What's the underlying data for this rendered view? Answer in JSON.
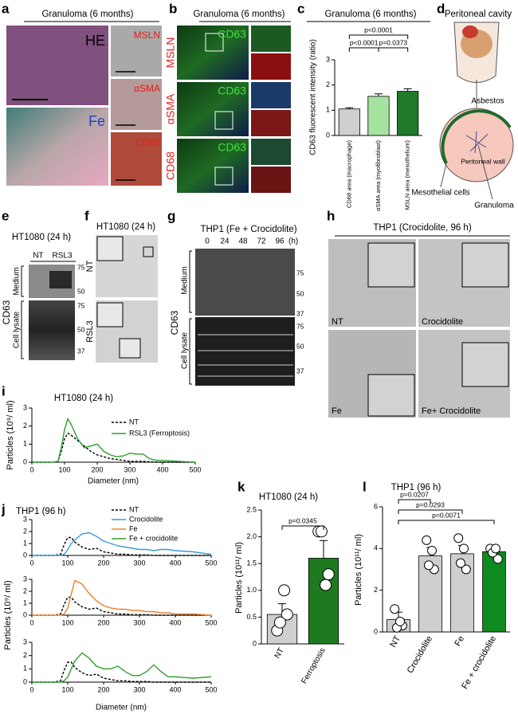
{
  "panels": {
    "a": {
      "letter": "a",
      "title": "Granuloma (6 months)",
      "stains": [
        "HE",
        "Fe",
        "MSLN",
        "αSMA",
        "CD68"
      ]
    },
    "b": {
      "letter": "b",
      "title": "Granuloma (6 months)",
      "marker": "CD63",
      "rows": [
        "MSLN",
        "αSMA",
        "CD68"
      ]
    },
    "d": {
      "letter": "d",
      "title": "Peritoneal cavity",
      "labels": [
        "Asbestos",
        "Peritoneal wall",
        "Mesothelial cells",
        "Granuloma"
      ]
    },
    "e": {
      "letter": "e",
      "title": "HT1080 (24 h)",
      "lanes": [
        "NT",
        "RSL3"
      ],
      "protein": "CD63",
      "fractions": [
        "Medium",
        "Cell lysate"
      ],
      "size_markers": [
        "75",
        "50",
        "75",
        "50",
        "37"
      ]
    },
    "f": {
      "letter": "f",
      "title": "HT1080 (24 h)",
      "rows": [
        "NT",
        "RSL3"
      ]
    },
    "g": {
      "letter": "g",
      "title": "THP1 (Fe + Crocidolite)",
      "lanes": [
        "0",
        "24",
        "48",
        "72",
        "96"
      ],
      "lane_unit": "(h)",
      "protein": "CD63",
      "fractions": [
        "Medium",
        "Cell lysate"
      ],
      "size_markers": [
        "75",
        "50",
        "37",
        "75",
        "50",
        "37"
      ]
    },
    "h": {
      "letter": "h",
      "title": "THP1 (Crocidolite, 96 h)",
      "labels": [
        "NT",
        "Crocidolite",
        "Fe",
        "Fe+ Crocidolite"
      ]
    }
  },
  "chart_data": [
    {
      "type": "bar",
      "panel_label": "c",
      "title": "Granuloma (6 months)",
      "ylabel": "CD63 fluorescent intensity (ratio)",
      "categories": [
        "CD68 area (macrophage)",
        "αSMA area (myofibroblast)",
        "MSLN area (mesothelium)"
      ],
      "values": [
        1.05,
        1.55,
        1.75
      ],
      "errors": [
        0.05,
        0.1,
        0.1
      ],
      "colors": [
        "#cfcfcf",
        "#a6e3a0",
        "#1f7a2b"
      ],
      "ylim": [
        0,
        3
      ],
      "yticks": [
        0,
        1,
        2,
        3
      ],
      "annotations": [
        "p<0.0001",
        "p<0.0001",
        "p=0.0373"
      ]
    },
    {
      "type": "line",
      "panel_label": "i",
      "title": "HT1080 (24 h)",
      "xlabel": "Diameter (nm)",
      "ylabel": "Particles (10⁹/ ml)",
      "x": [
        0,
        20,
        40,
        60,
        80,
        90,
        100,
        110,
        120,
        140,
        160,
        180,
        200,
        220,
        240,
        260,
        280,
        300,
        320,
        340,
        360,
        380,
        400,
        450,
        500
      ],
      "series": [
        {
          "name": "NT",
          "color": "#000000",
          "linestyle": "dashed",
          "values": [
            0,
            0,
            0,
            0,
            0.05,
            0.6,
            1.3,
            1.6,
            1.5,
            1.2,
            0.9,
            0.6,
            0.4,
            0.3,
            0.2,
            0.15,
            0.1,
            0.05,
            0.05,
            0.05,
            0.02,
            0,
            0,
            0,
            0
          ]
        },
        {
          "name": "RSL3 (Ferroptosis)",
          "color": "#2ca02c",
          "linestyle": "solid",
          "values": [
            0,
            0,
            0,
            0,
            0.05,
            0.8,
            1.8,
            2.4,
            2.1,
            1.3,
            0.8,
            0.9,
            1.0,
            0.6,
            0.4,
            0.3,
            0.35,
            0.5,
            0.45,
            0.45,
            0.2,
            0.1,
            0.1,
            0.05,
            0
          ]
        }
      ],
      "xlim": [
        0,
        500
      ],
      "xticks": [
        0,
        100,
        200,
        300,
        400,
        500
      ],
      "ylim": [
        0,
        3
      ],
      "yticks": [
        0,
        1,
        2,
        3
      ]
    },
    {
      "type": "line",
      "panel_label": "j",
      "title": "THP1 (96 h)",
      "xlabel": "Diameter (nm)",
      "ylabel": "Particles (10⁹/ ml)",
      "x": [
        0,
        20,
        40,
        60,
        80,
        90,
        100,
        110,
        120,
        140,
        160,
        180,
        200,
        220,
        240,
        260,
        280,
        300,
        320,
        340,
        360,
        380,
        400,
        450,
        500
      ],
      "series": [
        {
          "name": "NT",
          "color": "#000000",
          "linestyle": "dashed",
          "values": [
            0,
            0,
            0,
            0,
            0.1,
            0.9,
            1.5,
            1.5,
            1.1,
            0.7,
            0.5,
            0.6,
            0.3,
            0.2,
            0.1,
            0.1,
            0.05,
            0.05,
            0.05,
            0,
            0,
            0,
            0,
            0,
            0
          ]
        },
        {
          "name": "Crocidolite",
          "color": "#3a9ad9",
          "linestyle": "solid",
          "values": [
            0,
            0,
            0,
            0,
            0,
            0.1,
            0.5,
            1.0,
            1.3,
            1.8,
            1.9,
            1.6,
            1.2,
            1.0,
            0.8,
            0.7,
            0.6,
            0.5,
            0.5,
            0.4,
            0.5,
            0.5,
            0.4,
            0.3,
            0.1
          ]
        },
        {
          "name": "Fe",
          "color": "#f0802a",
          "linestyle": "solid",
          "values": [
            0,
            0,
            0,
            0,
            0,
            0.1,
            0.6,
            1.8,
            2.9,
            2.6,
            1.8,
            1.2,
            0.8,
            0.6,
            0.5,
            0.5,
            0.4,
            0.4,
            0.3,
            0.3,
            0.2,
            0.2,
            0.1,
            0.1,
            0
          ]
        },
        {
          "name": "Fe + crocidolite",
          "color": "#2ca02c",
          "linestyle": "solid",
          "values": [
            0,
            0,
            0,
            0,
            0,
            0.1,
            0.4,
            1.0,
            1.6,
            2.2,
            1.8,
            1.2,
            1.0,
            1.0,
            1.2,
            0.8,
            0.5,
            0.5,
            0.8,
            1.3,
            0.8,
            0.4,
            0.4,
            0.3,
            0.4
          ]
        }
      ],
      "xlim": [
        0,
        500
      ],
      "xticks": [
        0,
        100,
        200,
        300,
        400,
        500
      ],
      "ylim": [
        0,
        3
      ],
      "yticks": [
        0,
        1,
        2,
        3
      ]
    },
    {
      "type": "bar",
      "panel_label": "k",
      "title": "HT1080 (24 h)",
      "ylabel": "Particles (10¹¹/ ml)",
      "categories": [
        "NT",
        "Ferroptosis"
      ],
      "values": [
        0.55,
        1.6
      ],
      "errors": [
        0.2,
        0.33
      ],
      "colors": [
        "#cfcfcf",
        "#1e7a1e"
      ],
      "points": [
        [
          0.25,
          0.55,
          0.4,
          1.0
        ],
        [
          2.1,
          1.3,
          2.1,
          1.1
        ]
      ],
      "ylim": [
        0,
        2.5
      ],
      "yticks": [
        0,
        0.5,
        {
          "value": 1,
          "label": "1.0"
        },
        1.5,
        {
          "value": 2,
          "label": "2.0"
        },
        2.5
      ],
      "annotations": [
        "p=0.0345"
      ]
    },
    {
      "type": "bar",
      "panel_label": "l",
      "title": "THP1 (96 h)",
      "ylabel": "Particles (10¹¹/ ml)",
      "categories": [
        "NT",
        "Crocidolite",
        "Fe",
        "Fe + crocidolite"
      ],
      "values": [
        0.6,
        3.65,
        3.75,
        3.85
      ],
      "errors": [
        0.35,
        0.4,
        0.4,
        0.2
      ],
      "colors": [
        "#cfcfcf",
        "#cfcfcf",
        "#cfcfcf",
        "#0e8a1e"
      ],
      "points": [
        [
          1.1,
          0.3,
          0.2,
          0.5
        ],
        [
          4.4,
          3.0,
          3.2,
          3.9
        ],
        [
          4.5,
          3.0,
          3.3,
          4.0
        ],
        [
          4.0,
          3.5,
          3.8,
          4.0
        ]
      ],
      "ylim": [
        0,
        6
      ],
      "yticks": [
        0,
        2,
        4,
        6
      ],
      "annotations": [
        "p=0.0207",
        "p=0.0293",
        "p=0.0071"
      ]
    }
  ]
}
